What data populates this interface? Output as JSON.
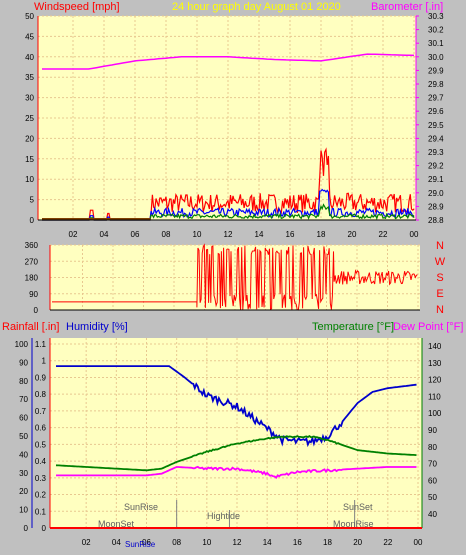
{
  "header": {
    "windspeed_label": "Windspeed [mph]",
    "graph_title": "24 hour graph day   August 01 2020",
    "barometer_label": "Barometer [.in]"
  },
  "compass_labels": [
    "N",
    "W",
    "S",
    "E",
    "N"
  ],
  "lower_header": {
    "rainfall_label": "Rainfall [.in]",
    "humidity_label": "Humidity [%]",
    "temperature_label": "Temperature [°F]",
    "dewpoint_label": "Dew Point [°F]"
  },
  "events": {
    "sunrise": "SunRise",
    "sunset": "SunSet",
    "hightide": "Hightide",
    "moonset": "MoonSet",
    "moonrise": "MoonRise",
    "sunrise_bottom": "SunRise"
  },
  "colors": {
    "panel_bg": "#ffffc0",
    "grid": "#e8c890",
    "wind": "#ff0000",
    "gust_blue": "#0000ff",
    "gust_green": "#008000",
    "barometer": "#ff00ff",
    "humidity": "#0000cc",
    "temperature": "#008000",
    "dewpoint": "#ff00ff",
    "title": "#ffff00"
  },
  "chart_data": [
    {
      "type": "line",
      "name": "wind-barometer",
      "x_ticks": [
        "02",
        "04",
        "06",
        "08",
        "10",
        "12",
        "14",
        "16",
        "18",
        "20",
        "22",
        "00"
      ],
      "y_left_ticks": [
        0,
        5,
        10,
        15,
        20,
        25,
        30,
        35,
        40,
        45,
        50
      ],
      "y_left_range": [
        0,
        50
      ],
      "y_right_ticks": [
        28.8,
        28.9,
        29,
        29.1,
        29.2,
        29.3,
        29.4,
        29.5,
        29.6,
        29.7,
        29.8,
        29.9,
        30,
        30.1,
        30.2,
        30.3
      ],
      "y_right_range": [
        28.8,
        30.3
      ],
      "barometer": {
        "hours": [
          0,
          3,
          6,
          9,
          12,
          15,
          18,
          21,
          24
        ],
        "values": [
          29.91,
          29.91,
          29.97,
          30.0,
          30.0,
          29.98,
          29.97,
          30.02,
          30.01
        ]
      },
      "wind": {
        "gust_start_hour": 7,
        "typical_mph": 2,
        "peak_hour": 18.2,
        "peak_mph": 11
      }
    },
    {
      "type": "scatter",
      "name": "wind-direction",
      "y_ticks": [
        0,
        90,
        180,
        270,
        360
      ],
      "y_range": [
        0,
        360
      ],
      "direction": {
        "calm_value": 45,
        "calm_until_hour": 9.5,
        "chaotic_until_hour": 18.5,
        "settled_center": 180
      }
    },
    {
      "type": "line",
      "name": "humidity-temperature",
      "x_ticks": [
        "02",
        "04",
        "06",
        "08",
        "10",
        "12",
        "14",
        "16",
        "18",
        "20",
        "22",
        "00"
      ],
      "rain_ticks": [
        0,
        0.1,
        0.2,
        0.3,
        0.4,
        0.5,
        0.6,
        0.7,
        0.8,
        0.9,
        1,
        1.1
      ],
      "humidity_ticks": [
        0,
        10,
        20,
        30,
        40,
        50,
        60,
        70,
        80,
        90,
        100
      ],
      "temp_ticks": [
        40,
        50,
        60,
        70,
        80,
        90,
        100,
        110,
        120,
        130,
        140
      ],
      "humidity": {
        "hours": [
          0,
          2,
          4,
          6,
          7.5,
          8.5,
          10,
          12,
          14,
          15,
          16,
          17,
          18,
          19,
          20,
          21,
          22,
          24
        ],
        "values": [
          88,
          88,
          88,
          88,
          88,
          82,
          72,
          66,
          54,
          48,
          47,
          47,
          50,
          58,
          68,
          74,
          76,
          78
        ]
      },
      "temperature": {
        "hours": [
          0,
          2,
          4,
          6,
          7,
          8,
          10,
          12,
          14,
          15,
          16,
          17,
          18,
          19,
          20,
          22,
          24
        ],
        "values": [
          69,
          68,
          67,
          66,
          67,
          71,
          77,
          82,
          85,
          86,
          86,
          86,
          84,
          81,
          78,
          76,
          75
        ]
      },
      "dewpoint": {
        "hours": [
          0,
          2,
          4,
          6,
          7,
          8,
          10,
          12,
          14,
          14.5,
          15,
          16,
          18,
          20,
          22,
          24
        ],
        "values": [
          63,
          63,
          63,
          63,
          64,
          68,
          67,
          67,
          64,
          62,
          63,
          65,
          66,
          67,
          68,
          68
        ]
      },
      "rainfall": 0
    }
  ]
}
